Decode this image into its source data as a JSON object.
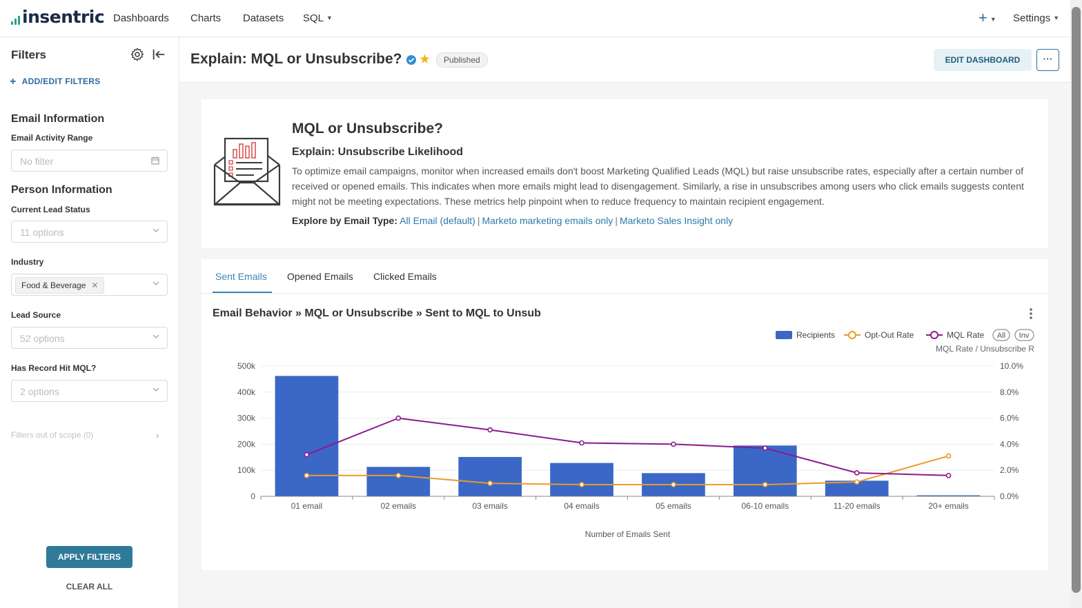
{
  "nav": {
    "logo": "insentric",
    "items": [
      "Dashboards",
      "Charts",
      "Datasets",
      "SQL"
    ],
    "settings": "Settings"
  },
  "sidebar": {
    "title": "Filters",
    "add_edit": "ADD/EDIT FILTERS",
    "sections": [
      {
        "title": "Email Information"
      },
      {
        "title": "Person Information"
      }
    ],
    "filters": [
      {
        "label": "Email Activity Range",
        "placeholder": "No filter"
      },
      {
        "label": "Current Lead Status",
        "placeholder": "11 options"
      },
      {
        "label": "Industry",
        "value": "Food & Beverage"
      },
      {
        "label": "Lead Source",
        "placeholder": "52 options"
      },
      {
        "label": "Has Record Hit MQL?",
        "placeholder": "2 options"
      }
    ],
    "out_of_scope": "Filters out of scope (0)",
    "apply": "APPLY FILTERS",
    "clear": "CLEAR ALL"
  },
  "header": {
    "title": "Explain: MQL or Unsubscribe?",
    "status": "Published",
    "edit": "EDIT DASHBOARD",
    "more": "···"
  },
  "markdown": {
    "heading": "MQL or Unsubscribe?",
    "subheading": "Explain: Unsubscribe Likelihood",
    "body": "To optimize email campaigns, monitor when increased emails don't boost Marketing Qualified Leads (MQL) but raise unsubscribe rates, especially after a certain number of received or opened emails. This indicates when more emails might lead to disengagement. Similarly, a rise in unsubscribes among users who click emails suggests content might not be meeting expectations. These metrics help pinpoint when to reduce frequency to maintain recipient engagement.",
    "explore_label": "Explore by Email Type:",
    "links": [
      "All Email (default)",
      "Marketo marketing emails only",
      "Marketo Sales Insight only"
    ]
  },
  "tabs": [
    "Sent Emails",
    "Opened Emails",
    "Clicked Emails"
  ],
  "chart": {
    "title": "Email Behavior » MQL or Unsubscribe » Sent to MQL to Unsub",
    "legend_all": "All",
    "legend_inv": "Inv",
    "right_axis_label": "MQL Rate / Unsubscribe R"
  },
  "chart_data": {
    "type": "bar",
    "categories": [
      "01 email",
      "02 emails",
      "03 emails",
      "04 emails",
      "05 emails",
      "06-10 emails",
      "11-20 emails",
      "20+ emails"
    ],
    "series": [
      {
        "name": "Recipients",
        "type": "bar",
        "axis": "left",
        "color": "#3b67c7",
        "values": [
          462000,
          113000,
          151000,
          128000,
          89000,
          195000,
          60000,
          4000
        ]
      },
      {
        "name": "Opt-Out Rate",
        "type": "line",
        "axis": "right",
        "color": "#ea9a2b",
        "values": [
          1.6,
          1.6,
          1.0,
          0.9,
          0.9,
          0.9,
          1.1,
          3.1
        ]
      },
      {
        "name": "MQL Rate",
        "type": "line",
        "axis": "right",
        "color": "#8b1a8f",
        "values": [
          3.2,
          6.0,
          5.1,
          4.1,
          4.0,
          3.7,
          1.8,
          1.6
        ]
      }
    ],
    "xlabel": "Number of Emails Sent",
    "ylim_left": [
      0,
      500000
    ],
    "ylim_right": [
      0,
      10
    ],
    "left_ticks": [
      "0",
      "100k",
      "200k",
      "300k",
      "400k",
      "500k"
    ],
    "right_ticks": [
      "0.0%",
      "2.0%",
      "4.0%",
      "6.0%",
      "8.0%",
      "10.0%"
    ],
    "grid": true,
    "legend": "top-right"
  }
}
